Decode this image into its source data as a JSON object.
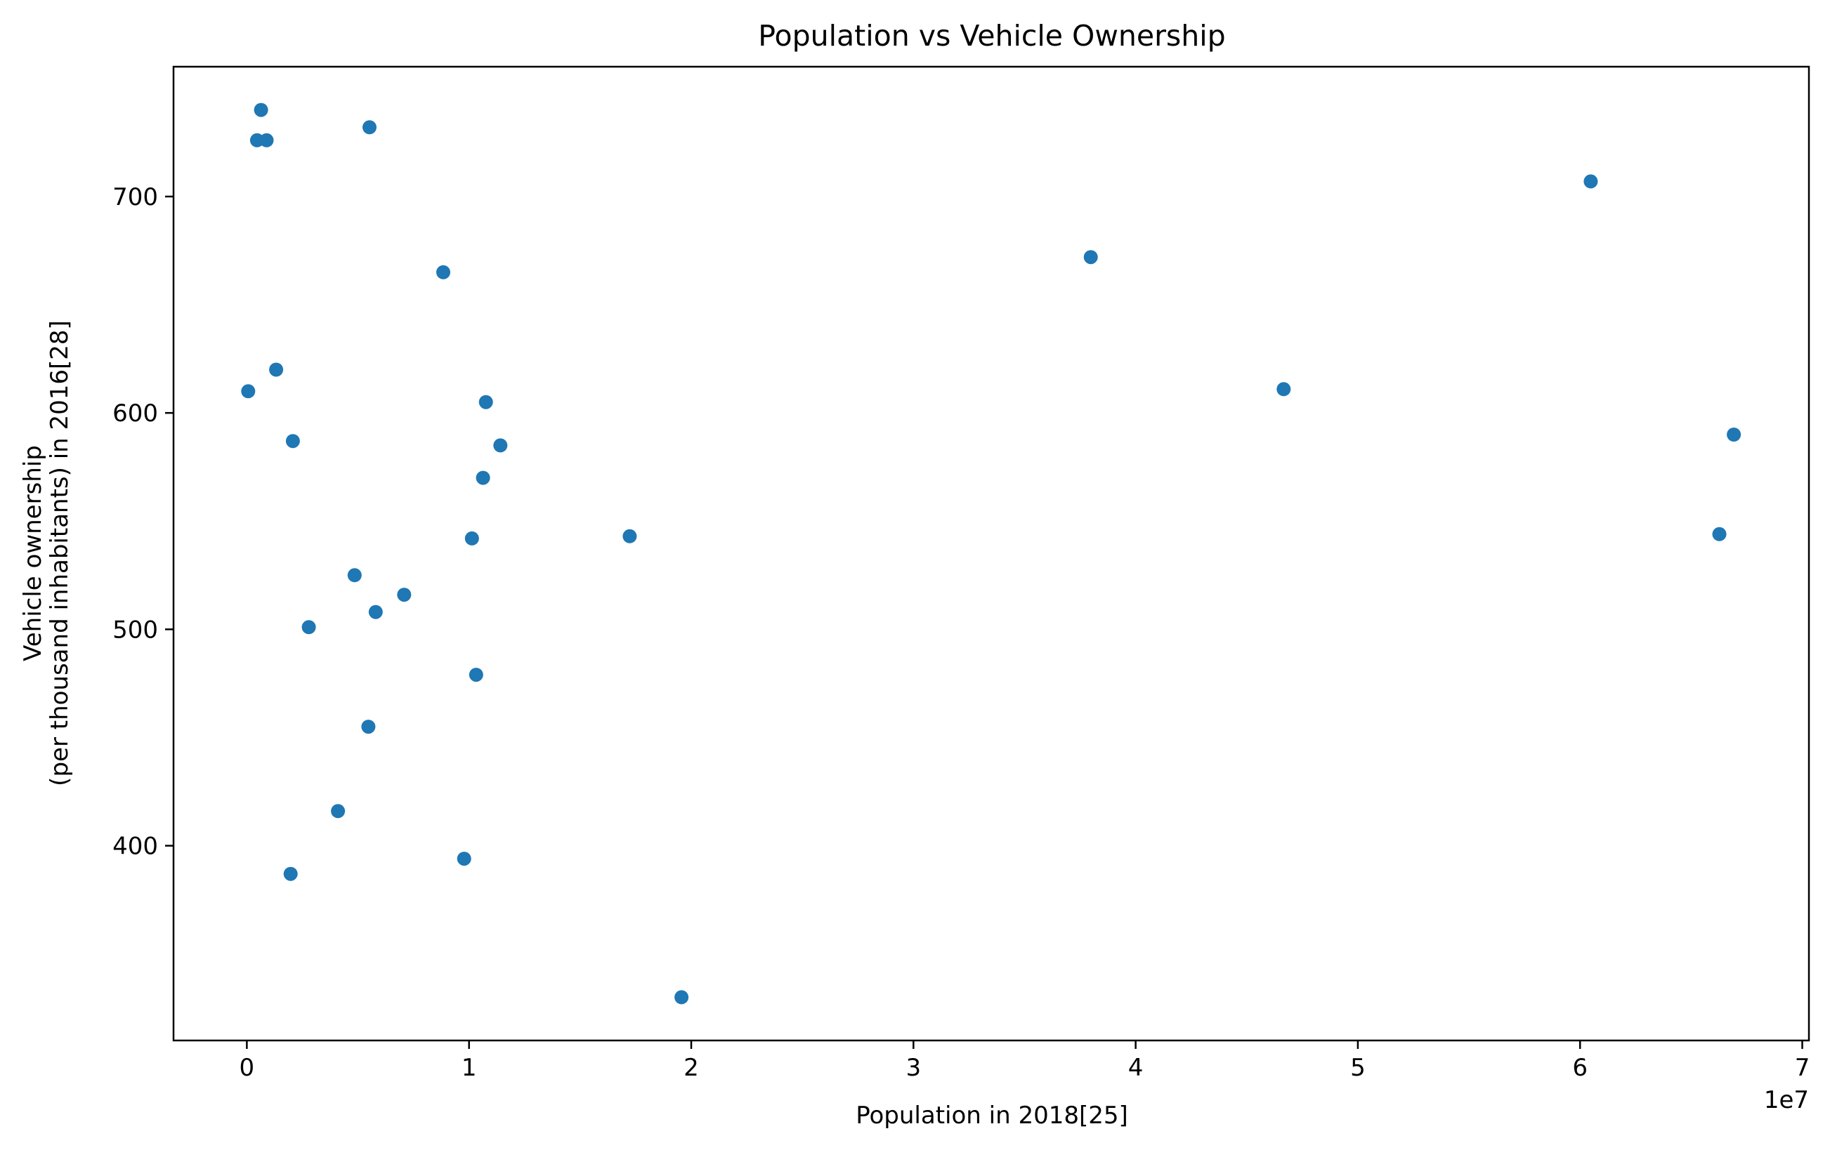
{
  "chart_data": {
    "type": "scatter",
    "title": "Population vs Vehicle Ownership",
    "xlabel": "Population in 2018[25]",
    "ylabel_lines": [
      "Vehicle ownership",
      "(per thousand inhabitants) in 2016[28]"
    ],
    "x_offset_label": "1e7",
    "xlim": [
      -3300000,
      70300000
    ],
    "ylim": [
      310,
      760
    ],
    "x_ticks": [
      0,
      10000000,
      20000000,
      30000000,
      40000000,
      50000000,
      60000000,
      70000000
    ],
    "x_tick_labels": [
      "0",
      "1",
      "2",
      "3",
      "4",
      "5",
      "6",
      "7"
    ],
    "y_ticks": [
      400,
      500,
      600,
      700
    ],
    "y_tick_labels": [
      "400",
      "500",
      "600",
      "700"
    ],
    "grid": false,
    "legend": false,
    "marker_color": "#1f77b4",
    "points": [
      {
        "x": 60000,
        "y": 610
      },
      {
        "x": 460000,
        "y": 726
      },
      {
        "x": 640000,
        "y": 740
      },
      {
        "x": 890000,
        "y": 726
      },
      {
        "x": 1320000,
        "y": 620
      },
      {
        "x": 2070000,
        "y": 587
      },
      {
        "x": 1970000,
        "y": 387
      },
      {
        "x": 2790000,
        "y": 501
      },
      {
        "x": 4100000,
        "y": 416
      },
      {
        "x": 4850000,
        "y": 525
      },
      {
        "x": 5470000,
        "y": 455
      },
      {
        "x": 5520000,
        "y": 732
      },
      {
        "x": 5800000,
        "y": 508
      },
      {
        "x": 7080000,
        "y": 516
      },
      {
        "x": 8840000,
        "y": 665
      },
      {
        "x": 9780000,
        "y": 394
      },
      {
        "x": 10130000,
        "y": 542
      },
      {
        "x": 10320000,
        "y": 479
      },
      {
        "x": 10630000,
        "y": 570
      },
      {
        "x": 10760000,
        "y": 605
      },
      {
        "x": 11410000,
        "y": 585
      },
      {
        "x": 17230000,
        "y": 543
      },
      {
        "x": 19560000,
        "y": 330
      },
      {
        "x": 37980000,
        "y": 672
      },
      {
        "x": 46660000,
        "y": 611
      },
      {
        "x": 60480000,
        "y": 707
      },
      {
        "x": 66270000,
        "y": 544
      },
      {
        "x": 66920000,
        "y": 590
      }
    ]
  }
}
